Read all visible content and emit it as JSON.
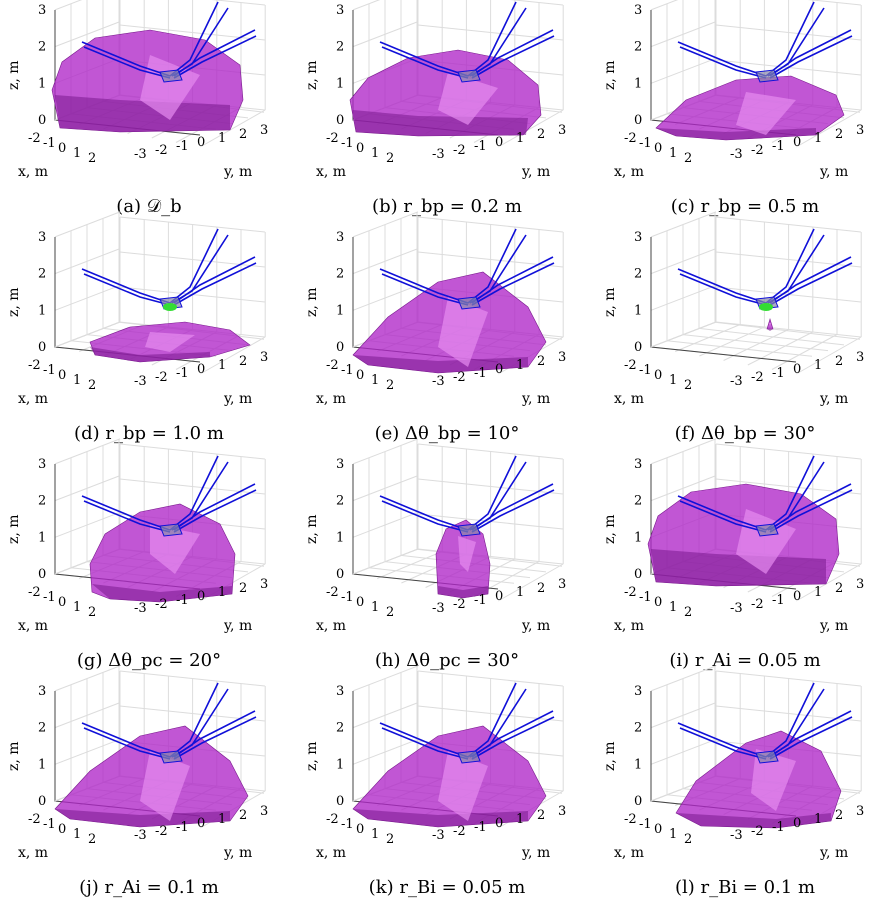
{
  "colors": {
    "shape": "#b026c8",
    "shape_light": "#e58cf0",
    "shape_dark": "#7a1a8e",
    "blade": "#1010d8",
    "accent_green": "#33dd33"
  },
  "axes": {
    "z_label": "z, m",
    "x_label": "x, m",
    "y_label": "y, m",
    "z_ticks": [
      "0",
      "1",
      "2",
      "3"
    ],
    "x_ticks": [
      "-2",
      "-1",
      "0",
      "1",
      "2"
    ],
    "y_ticks": [
      "-3",
      "-2",
      "-1",
      "0",
      "1",
      "2",
      "3"
    ]
  },
  "panels": [
    {
      "caption": "(a) 𝒟_b",
      "shape": "box",
      "green_dot": false
    },
    {
      "caption": "(b) r_bp = 0.2 m",
      "shape": "box_low",
      "green_dot": false
    },
    {
      "caption": "(c) r_bp = 0.5 m",
      "shape": "dome_low",
      "green_dot": false
    },
    {
      "caption": "(d) r_bp = 1.0 m",
      "shape": "flat",
      "green_dot": true
    },
    {
      "caption": "(e) Δθ_bp = 10°",
      "shape": "dome",
      "green_dot": false
    },
    {
      "caption": "(f) Δθ_bp = 30°",
      "shape": "tiny",
      "green_dot": true
    },
    {
      "caption": "(g) Δθ_pc = 20°",
      "shape": "bell",
      "green_dot": false
    },
    {
      "caption": "(h) Δθ_pc = 30°",
      "shape": "pillar",
      "green_dot": false
    },
    {
      "caption": "(i) r_Ai = 0.05 m",
      "shape": "box",
      "green_dot": false
    },
    {
      "caption": "(j) r_Ai = 0.1 m",
      "shape": "dome",
      "green_dot": false
    },
    {
      "caption": "(k) r_Bi = 0.05 m",
      "shape": "dome",
      "green_dot": false
    },
    {
      "caption": "(l) r_Bi = 0.1 m",
      "shape": "lean",
      "green_dot": false
    }
  ]
}
